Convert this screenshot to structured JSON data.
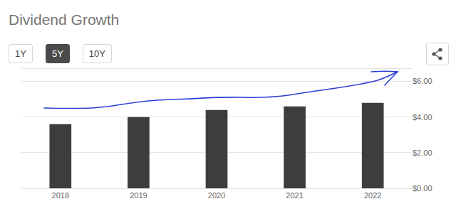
{
  "chart_data": {
    "type": "bar",
    "title": "Dividend Growth",
    "buttons": [
      "1Y",
      "5Y",
      "10Y"
    ],
    "selected": "5Y",
    "categories": [
      "2018",
      "2019",
      "2020",
      "2021",
      "2022"
    ],
    "values": [
      3.6,
      4.0,
      4.4,
      4.6,
      4.8
    ],
    "color": "#3d3d3f",
    "ylim": [
      0,
      6.7
    ],
    "yticks": [
      {
        "value": 0,
        "label": "$0.00"
      },
      {
        "value": 2,
        "label": "$2.00"
      },
      {
        "value": 4,
        "label": "$4.00"
      },
      {
        "value": 6,
        "label": "$6.00"
      }
    ],
    "grid": true
  }
}
